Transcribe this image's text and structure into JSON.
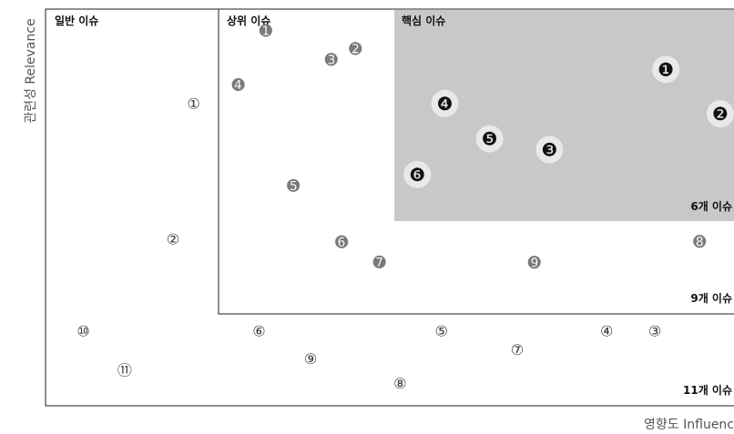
{
  "chart_data": {
    "type": "scatter",
    "title": "",
    "xlabel": "영향도 Influenc",
    "ylabel": "관련성 Relevance",
    "grid": false,
    "zones": [
      {
        "id": "general",
        "title": "일반 이슈",
        "count_label": "11개 이슈"
      },
      {
        "id": "top",
        "title": "상위 이슈",
        "count_label": "9개 이슈"
      },
      {
        "id": "core",
        "title": "핵심 이슈",
        "count_label": "6개 이슈"
      }
    ],
    "colors": {
      "core_fill": "#c8c8c8",
      "core_marker": "#111111",
      "top_marker": "#7a7a7a",
      "general_marker": "#333333",
      "halo": "#e9e9e9",
      "frame": "#222222"
    },
    "series": [
      {
        "zone": "core",
        "marker_style": "filled-circle-number-dark",
        "points": [
          {
            "label": "❶",
            "x": 90.1,
            "y": 84.8
          },
          {
            "label": "❷",
            "x": 98.0,
            "y": 73.6
          },
          {
            "label": "❸",
            "x": 73.2,
            "y": 64.6
          },
          {
            "label": "❹",
            "x": 58.0,
            "y": 76.2
          },
          {
            "label": "❺",
            "x": 64.5,
            "y": 67.3
          },
          {
            "label": "❻",
            "x": 54.0,
            "y": 58.3
          }
        ]
      },
      {
        "zone": "top",
        "marker_style": "filled-circle-number-gray",
        "points": [
          {
            "label": "➊",
            "x": 32.0,
            "y": 94.4
          },
          {
            "label": "➋",
            "x": 45.0,
            "y": 89.8
          },
          {
            "label": "➌",
            "x": 41.5,
            "y": 87.0
          },
          {
            "label": "➍",
            "x": 28.0,
            "y": 80.7
          },
          {
            "label": "➎",
            "x": 36.0,
            "y": 55.3
          },
          {
            "label": "➏",
            "x": 43.0,
            "y": 41.1
          },
          {
            "label": "➐",
            "x": 48.5,
            "y": 36.0
          },
          {
            "label": "➑",
            "x": 95.0,
            "y": 41.2
          },
          {
            "label": "➒",
            "x": 71.0,
            "y": 35.9
          }
        ]
      },
      {
        "zone": "general",
        "marker_style": "outlined-circle-number",
        "points": [
          {
            "label": "①",
            "x": 21.5,
            "y": 76.1
          },
          {
            "label": "②",
            "x": 18.5,
            "y": 42.0
          },
          {
            "label": "③",
            "x": 88.5,
            "y": 18.8
          },
          {
            "label": "④",
            "x": 81.5,
            "y": 18.8
          },
          {
            "label": "⑤",
            "x": 57.5,
            "y": 18.8
          },
          {
            "label": "⑥",
            "x": 31.0,
            "y": 18.8
          },
          {
            "label": "⑦",
            "x": 68.5,
            "y": 14.1
          },
          {
            "label": "⑧",
            "x": 51.5,
            "y": 5.6
          },
          {
            "label": "⑨",
            "x": 38.5,
            "y": 11.8
          },
          {
            "label": "⑩",
            "x": 5.5,
            "y": 18.8
          },
          {
            "label": "⑪",
            "x": 11.5,
            "y": 8.9
          }
        ]
      }
    ]
  }
}
